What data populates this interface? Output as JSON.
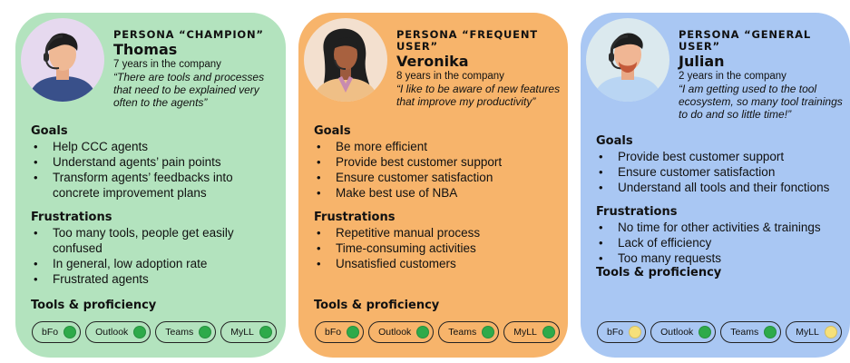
{
  "personas": [
    {
      "label": "PERSONA “CHAMPION”",
      "name": "Thomas",
      "years": "7 years in the company",
      "quote": "“There are tools and processes that need to be explained very often to the agents”",
      "bg": "#b3e3be",
      "avatar": "champion-avatar",
      "goals_title": "Goals",
      "goals": [
        "Help CCC agents",
        "Understand agents’ pain points",
        "Transform agents’ feedbacks into concrete improvement plans"
      ],
      "frustrations_title": "Frustrations",
      "frustrations": [
        "Too many tools, people get easily confused",
        "In general, low adoption rate",
        "Frustrated agents"
      ],
      "tools_title": "Tools & proficiency",
      "tools": [
        {
          "name": "bFo",
          "level": "green"
        },
        {
          "name": "Outlook",
          "level": "green"
        },
        {
          "name": "Teams",
          "level": "green"
        },
        {
          "name": "MyLL",
          "level": "green"
        }
      ]
    },
    {
      "label": "PERSONA “FREQUENT USER”",
      "name": "Veronika",
      "years": "8 years in the company",
      "quote": "“I like to be aware of new features that improve my productivity”",
      "bg": "#f7b46b",
      "avatar": "frequent-user-avatar",
      "goals_title": "Goals",
      "goals": [
        "Be more efficient",
        "Provide best customer support",
        "Ensure customer satisfaction",
        "Make best use of NBA"
      ],
      "frustrations_title": "Frustrations",
      "frustrations": [
        "Repetitive manual process",
        "Time-consuming activities",
        "Unsatisfied customers"
      ],
      "tools_title": "Tools & proficiency",
      "tools": [
        {
          "name": "bFo",
          "level": "green"
        },
        {
          "name": "Outlook",
          "level": "green"
        },
        {
          "name": "Teams",
          "level": "green"
        },
        {
          "name": "MyLL",
          "level": "green"
        }
      ]
    },
    {
      "label": "PERSONA “GENERAL USER”",
      "name": "Julian",
      "years": "2 years in the company",
      "quote": "“I am getting used to the tool ecosystem, so many tool trainings to do and so little time!”",
      "bg": "#a9c7f3",
      "avatar": "general-user-avatar",
      "goals_title": "Goals",
      "goals": [
        "Provide best customer support",
        "Ensure customer satisfaction",
        "Understand all tools and their fonctions"
      ],
      "frustrations_title": "Frustrations",
      "frustrations": [
        "No time for other activities & trainings",
        "Lack of efficiency",
        "Too many requests"
      ],
      "tools_title": "Tools & proficiency",
      "tools": [
        {
          "name": "bFo",
          "level": "yellow"
        },
        {
          "name": "Outlook",
          "level": "green"
        },
        {
          "name": "Teams",
          "level": "green"
        },
        {
          "name": "MyLL",
          "level": "yellow"
        }
      ]
    }
  ],
  "colors": {
    "green": "#2eaa4a",
    "yellow": "#f6e07a",
    "outline": "#222222"
  }
}
